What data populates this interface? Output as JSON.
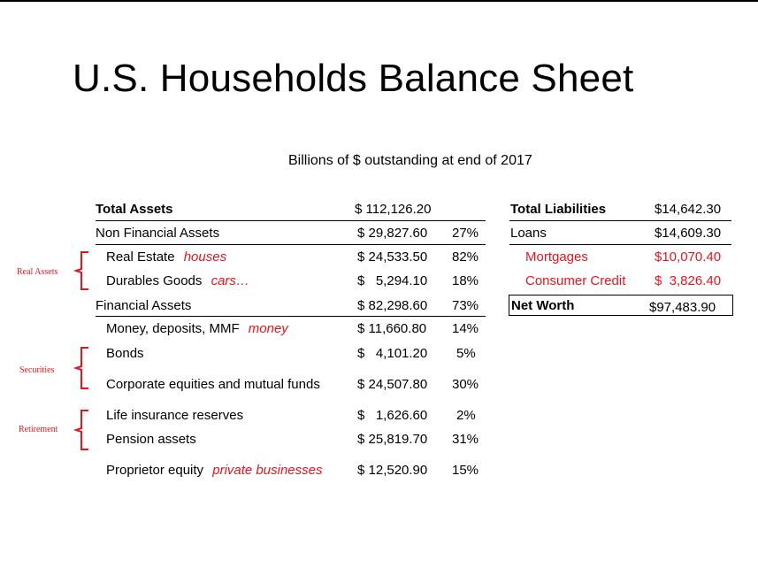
{
  "title": "U.S. Households Balance Sheet",
  "subtitle": "Billions of $ outstanding at end of 2017",
  "side_labels": {
    "real_assets": "Real Assets",
    "securities": "Securities",
    "retirement": "Retirement"
  },
  "assets": {
    "total": {
      "label": "Total Assets",
      "amount": "$ 112,126.20"
    },
    "non_financial": {
      "label": "Non Financial Assets",
      "amount": "$ 29,827.60",
      "pct": "27%"
    },
    "real_estate": {
      "label": "Real Estate",
      "note": "houses",
      "amount": "$ 24,533.50",
      "pct": "82%"
    },
    "durables": {
      "label": "Durables Goods",
      "note": "cars…",
      "amount": "$   5,294.10",
      "pct": "18%"
    },
    "financial": {
      "label": "Financial Assets",
      "amount": "$ 82,298.60",
      "pct": "73%"
    },
    "money": {
      "label": "Money, deposits, MMF",
      "note": "money",
      "amount": "$ 11,660.80",
      "pct": "14%"
    },
    "bonds": {
      "label": "Bonds",
      "amount": "$   4,101.20",
      "pct": "5%"
    },
    "equities": {
      "label": "Corporate equities and mutual funds",
      "amount": "$ 24,507.80",
      "pct": "30%"
    },
    "life_insurance": {
      "label": "Life insurance reserves",
      "amount": "$   1,626.60",
      "pct": "2%"
    },
    "pension": {
      "label": "Pension assets",
      "amount": "$ 25,819.70",
      "pct": "31%"
    },
    "proprietor": {
      "label": "Proprietor equity",
      "note": "private businesses",
      "amount": "$ 12,520.90",
      "pct": "15%"
    }
  },
  "liabilities": {
    "total": {
      "label": "Total Liabilities",
      "amount": "$14,642.30"
    },
    "loans": {
      "label": "Loans",
      "amount": "$14,609.30"
    },
    "mortgages": {
      "label": "Mortgages",
      "amount": "$10,070.40"
    },
    "consumer_credit": {
      "label": "Consumer Credit",
      "amount": "$  3,826.40"
    },
    "net_worth": {
      "label": "Net Worth",
      "amount": "$97,483.90"
    }
  },
  "colors": {
    "accent_red": "#e8141c",
    "text": "#000000",
    "background": "#ffffff"
  }
}
